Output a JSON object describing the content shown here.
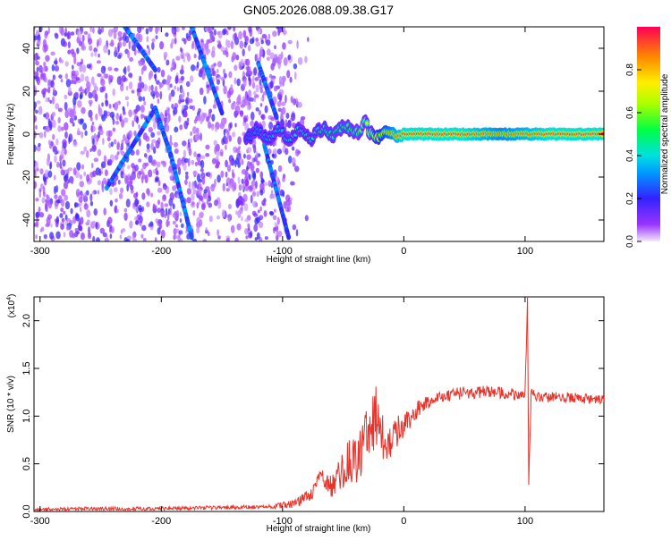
{
  "title": "GN05.2026.088.09.38.G17",
  "colors": {
    "snr_line": "#e8322a",
    "spectrogram_main": "#6a1ff0",
    "background": "#ffffff",
    "frame": "#000000"
  },
  "chart_data": [
    {
      "type": "heatmap",
      "xlabel": "Height of straight line (km)",
      "ylabel": "Frequency (Hz)",
      "xlim": [
        -305,
        165
      ],
      "ylim": [
        -50,
        50
      ],
      "x_ticks": [
        "-300",
        "-200",
        "-100",
        "0",
        "100"
      ],
      "x_tick_values": [
        -300,
        -200,
        -100,
        0,
        100
      ],
      "y_ticks": [
        "-40",
        "-20",
        "0",
        "20",
        "40"
      ],
      "y_tick_values": [
        -40,
        -20,
        0,
        20,
        40
      ],
      "colorbar": {
        "label": "Normalized spectral amplitude",
        "range": [
          0,
          1
        ],
        "ticks": [
          "0.0",
          "0.2",
          "0.4",
          "0.6",
          "0.8"
        ],
        "tick_values": [
          0.0,
          0.2,
          0.4,
          0.6,
          0.8
        ],
        "colormap": "rainbow (purple to red)"
      },
      "features": {
        "main_trace": {
          "freq_hz": 0,
          "amplitude_by_height": [
            [
              -130,
              0.25
            ],
            [
              -110,
              0.35
            ],
            [
              -80,
              0.45
            ],
            [
              -60,
              0.5
            ],
            [
              -40,
              0.55
            ],
            [
              -25,
              0.7
            ],
            [
              -10,
              0.85
            ],
            [
              0,
              0.95
            ],
            [
              50,
              0.95
            ],
            [
              80,
              0.85
            ],
            [
              100,
              0.9
            ],
            [
              120,
              0.95
            ],
            [
              165,
              0.95
            ]
          ]
        },
        "streaks": [
          {
            "from": [
              -245,
              -25
            ],
            "to": [
              -205,
              12
            ]
          },
          {
            "from": [
              -205,
              12
            ],
            "to": [
              -192,
              -10
            ]
          },
          {
            "from": [
              -192,
              -10
            ],
            "to": [
              -175,
              -48
            ]
          },
          {
            "from": [
              -120,
              33
            ],
            "to": [
              -105,
              8
            ]
          },
          {
            "from": [
              -115,
              -5
            ],
            "to": [
              -95,
              -48
            ]
          },
          {
            "from": [
              -175,
              50
            ],
            "to": [
              -150,
              10
            ]
          },
          {
            "from": [
              -230,
              50
            ],
            "to": [
              -205,
              30
            ]
          }
        ],
        "noise_region": [
          -305,
          -85
        ]
      }
    },
    {
      "type": "line",
      "xlabel": "Height of straight line (km)",
      "ylabel": "SNR (10 * v/v)",
      "y_multiplier": "(x10",
      "y_multiplier_exp": "4",
      "y_multiplier_close": ")",
      "xlim": [
        -305,
        165
      ],
      "ylim": [
        0,
        2.25
      ],
      "x_ticks": [
        "-300",
        "-200",
        "-100",
        "0",
        "100"
      ],
      "x_tick_values": [
        -300,
        -200,
        -100,
        0,
        100
      ],
      "y_ticks": [
        "0.0",
        "0.5",
        "1.0",
        "1.5",
        "2.0"
      ],
      "y_tick_values": [
        0.0,
        0.5,
        1.0,
        1.5,
        2.0
      ],
      "series": [
        {
          "color": "#e8322a",
          "x": [
            -305,
            -250,
            -200,
            -150,
            -110,
            -90,
            -75,
            -70,
            -60,
            -50,
            -45,
            -40,
            -30,
            -25,
            -20,
            -15,
            -10,
            -5,
            0,
            10,
            20,
            30,
            50,
            80,
            100,
            102,
            103,
            105,
            110,
            130,
            165
          ],
          "y": [
            0.02,
            0.03,
            0.03,
            0.04,
            0.05,
            0.08,
            0.2,
            0.38,
            0.25,
            0.45,
            0.55,
            0.5,
            0.8,
            0.95,
            1.1,
            0.6,
            0.75,
            0.85,
            0.9,
            1.05,
            1.15,
            1.2,
            1.25,
            1.25,
            1.22,
            2.25,
            0.3,
            1.25,
            1.2,
            1.2,
            1.17
          ],
          "noise_amplitude_by_height": [
            [
              -305,
              0.02
            ],
            [
              -110,
              0.02
            ],
            [
              -70,
              0.08
            ],
            [
              -50,
              0.2
            ],
            [
              -30,
              0.3
            ],
            [
              -20,
              0.35
            ],
            [
              -10,
              0.2
            ],
            [
              0,
              0.12
            ],
            [
              20,
              0.08
            ],
            [
              40,
              0.07
            ],
            [
              165,
              0.05
            ]
          ]
        }
      ]
    }
  ]
}
